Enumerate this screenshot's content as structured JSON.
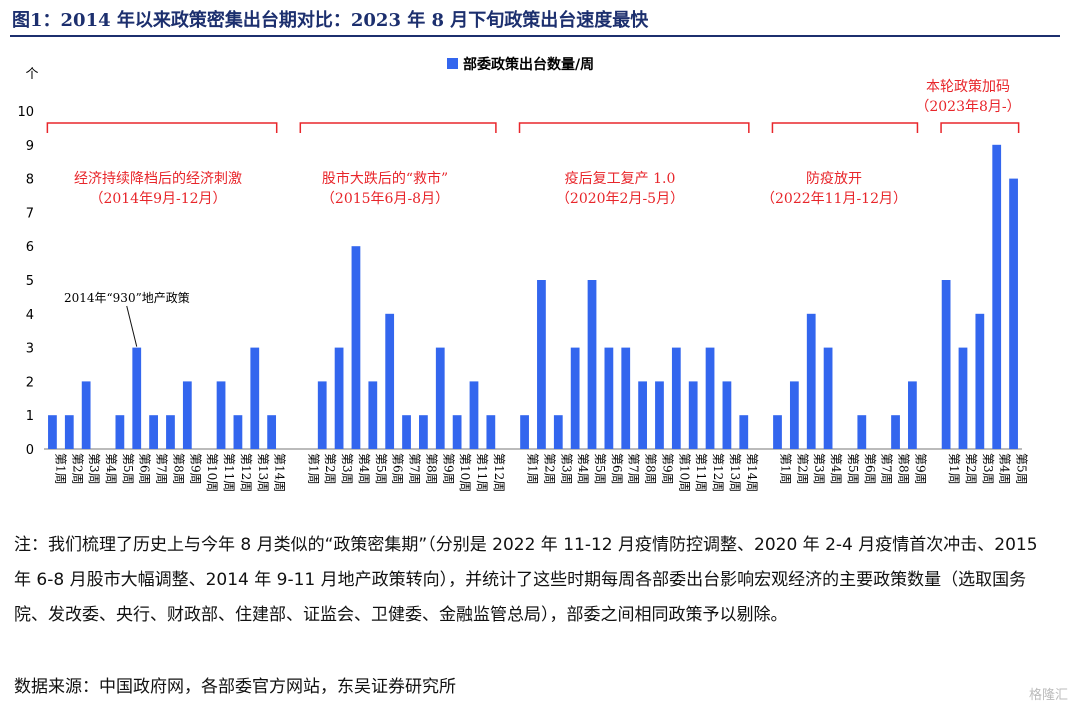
{
  "figure_title": "图1：2014 年以来政策密集出台期对比：2023 年 8 月下旬政策出台速度最快",
  "chart_data": {
    "type": "bar",
    "legend": {
      "label": "部委政策出台数量/周",
      "placement": "top-center"
    },
    "y_unit": "个",
    "ylim": [
      0,
      10
    ],
    "yticks": [
      0,
      1,
      2,
      3,
      4,
      5,
      6,
      7,
      8,
      9,
      10
    ],
    "bar_color": "#3366ee",
    "annotation_color": "#e8262b",
    "groups": [
      {
        "label_line1": "经济持续降档后的经济刺激",
        "label_line2": "（2014年9月-12月）",
        "categories": [
          "第1周",
          "第2周",
          "第3周",
          "第4周",
          "第5周",
          "第6周",
          "第7周",
          "第8周",
          "第9周",
          "第10周",
          "第11周",
          "第12周",
          "第13周",
          "第14周"
        ],
        "values": [
          1,
          1,
          2,
          0,
          1,
          3,
          1,
          1,
          2,
          0,
          2,
          1,
          3,
          1
        ],
        "callout": {
          "text": "2014年“930”地产政策",
          "category_index": 5
        }
      },
      {
        "label_line1": "股市大跌后的“救市”",
        "label_line2": "（2015年6月-8月）",
        "categories": [
          "第1周",
          "第2周",
          "第3周",
          "第4周",
          "第5周",
          "第6周",
          "第7周",
          "第8周",
          "第9周",
          "第10周",
          "第11周",
          "第12周"
        ],
        "values": [
          0,
          2,
          3,
          6,
          2,
          4,
          1,
          1,
          3,
          1,
          2,
          1
        ]
      },
      {
        "label_line1": "疫后复工复产 1.0",
        "label_line2": "（2020年2月-5月）",
        "categories": [
          "第1周",
          "第2周",
          "第3周",
          "第4周",
          "第5周",
          "第6周",
          "第7周",
          "第8周",
          "第9周",
          "第10周",
          "第11周",
          "第12周",
          "第13周",
          "第14周"
        ],
        "values": [
          1,
          5,
          1,
          3,
          5,
          3,
          3,
          2,
          2,
          3,
          2,
          3,
          2,
          1
        ]
      },
      {
        "label_line1": "防疫放开",
        "label_line2": "（2022年11月-12月）",
        "categories": [
          "第1周",
          "第2周",
          "第3周",
          "第4周",
          "第5周",
          "第6周",
          "第7周",
          "第8周",
          "第9周"
        ],
        "values": [
          1,
          2,
          4,
          3,
          0,
          1,
          0,
          1,
          2
        ]
      },
      {
        "label_line1": "本轮政策加码",
        "label_line2": "（2023年8月-）",
        "categories": [
          "第1周",
          "第2周",
          "第3周",
          "第4周",
          "第5周"
        ],
        "values": [
          5,
          3,
          4,
          9,
          8
        ]
      }
    ]
  },
  "note": "注：我们梳理了历史上与今年 8 月类似的“政策密集期”（分别是 2022 年 11-12 月疫情防控调整、2020 年 2-4 月疫情首次冲击、2015 年 6-8 月股市大幅调整、2014 年 9-11 月地产政策转向），并统计了这些时期每周各部委出台影响宏观经济的主要政策数量（选取国务院、发改委、央行、财政部、住建部、证监会、卫健委、金融监管总局），部委之间相同政策予以剔除。",
  "source": "数据来源：中国政府网，各部委官方网站，东吴证券研究所",
  "watermark": "格隆汇"
}
